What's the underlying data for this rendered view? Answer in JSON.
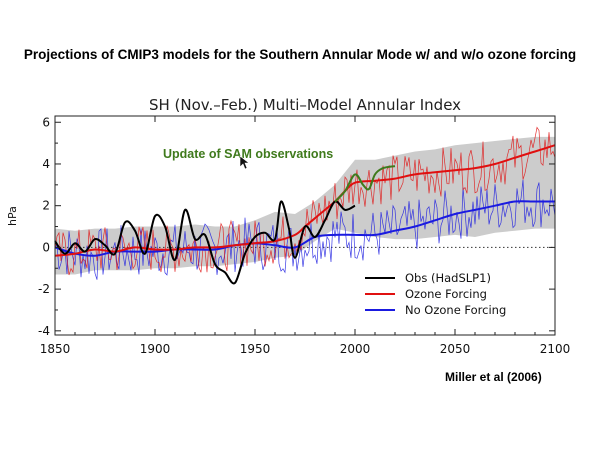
{
  "slide": {
    "title": "Projections of CMIP3 models for the Southern Annular Mode w/ and w/o ozone forcing",
    "citation": "Miller et al (2006)"
  },
  "chart_data": {
    "type": "line",
    "title": "SH (Nov.–Feb.) Multi–Model Annular Index",
    "ylabel": "hPa",
    "xlabel": "",
    "xlim": [
      1850,
      2100
    ],
    "ylim": [
      -4.2,
      6.3
    ],
    "x_ticks": [
      1850,
      1900,
      1950,
      2000,
      2050,
      2100
    ],
    "y_ticks": [
      -4,
      -2,
      0,
      2,
      4,
      6
    ],
    "zero_line": "dotted",
    "annotation": "Update of SAM observations",
    "legend_position": "bottom-right",
    "legend": [
      "Obs (HadSLP1)",
      "Ozone Forcing",
      "No Ozone Forcing"
    ],
    "colors": {
      "obs": "#000000",
      "ozone": "#e01010",
      "no_ozone": "#1a1ae0",
      "update": "#3f7a1c",
      "band": "#cccccc"
    },
    "spread_band": {
      "x": [
        1850,
        1860,
        1870,
        1880,
        1890,
        1900,
        1910,
        1920,
        1930,
        1940,
        1950,
        1960,
        1970,
        1980,
        1990,
        2000,
        2010,
        2020,
        2030,
        2040,
        2050,
        2060,
        2070,
        2080,
        2090,
        2100
      ],
      "upper": [
        0.9,
        0.8,
        0.9,
        0.9,
        1.0,
        1.0,
        1.0,
        1.1,
        1.0,
        1.0,
        1.3,
        1.7,
        1.6,
        2.2,
        3.0,
        4.2,
        4.2,
        4.4,
        4.6,
        4.7,
        4.9,
        5.0,
        5.1,
        5.2,
        5.3,
        5.3
      ],
      "lower": [
        -1.3,
        -1.3,
        -1.1,
        -1.1,
        -1.1,
        -1.0,
        -1.0,
        -0.9,
        -0.9,
        -0.8,
        -0.7,
        -0.5,
        -0.4,
        0.3,
        0.9,
        0.7,
        0.5,
        0.4,
        0.4,
        0.5,
        0.6,
        0.5,
        0.7,
        0.8,
        0.9,
        0.9
      ]
    },
    "series": [
      {
        "name": "Obs (HadSLP1)",
        "x": [
          1850,
          1855,
          1860,
          1865,
          1870,
          1875,
          1880,
          1885,
          1890,
          1895,
          1900,
          1905,
          1910,
          1915,
          1920,
          1925,
          1930,
          1935,
          1940,
          1945,
          1950,
          1955,
          1960,
          1963,
          1967,
          1970,
          1975,
          1980,
          1985,
          1990,
          1995,
          2000
        ],
        "y": [
          0.3,
          -0.3,
          0.2,
          -0.2,
          0.4,
          0.1,
          -0.3,
          1.2,
          0.8,
          -0.3,
          1.5,
          1.0,
          -0.6,
          1.8,
          0.4,
          0.6,
          -0.8,
          -1.2,
          -1.7,
          -0.3,
          0.5,
          0.7,
          0.4,
          2.2,
          0.9,
          -0.5,
          1.0,
          0.5,
          1.3,
          2.2,
          1.8,
          2.0
        ]
      },
      {
        "name": "Update of SAM observations",
        "x": [
          1990,
          1995,
          2000,
          2004,
          2007,
          2010,
          2014,
          2020
        ],
        "y": [
          2.2,
          2.7,
          3.5,
          3.0,
          2.8,
          3.5,
          3.8,
          3.9
        ]
      },
      {
        "name": "Ozone Forcing",
        "x": [
          1850,
          1860,
          1870,
          1880,
          1890,
          1900,
          1910,
          1920,
          1930,
          1940,
          1950,
          1960,
          1970,
          1975,
          1980,
          1985,
          1990,
          1995,
          2000,
          2010,
          2020,
          2030,
          2040,
          2050,
          2060,
          2070,
          2080,
          2090,
          2100
        ],
        "y": [
          -0.4,
          -0.3,
          -0.1,
          -0.2,
          0.0,
          -0.1,
          -0.1,
          0.0,
          0.0,
          0.1,
          0.2,
          0.3,
          0.6,
          1.0,
          1.4,
          1.8,
          2.2,
          2.7,
          3.1,
          3.2,
          3.3,
          3.5,
          3.6,
          3.7,
          3.8,
          4.0,
          4.3,
          4.6,
          4.9
        ]
      },
      {
        "name": "No Ozone Forcing",
        "x": [
          1850,
          1860,
          1870,
          1880,
          1890,
          1900,
          1910,
          1920,
          1930,
          1940,
          1950,
          1960,
          1970,
          1980,
          1990,
          2000,
          2010,
          2020,
          2030,
          2040,
          2050,
          2060,
          2070,
          2080,
          2090,
          2100
        ],
        "y": [
          0.0,
          -0.3,
          -0.4,
          -0.2,
          -0.2,
          -0.2,
          -0.1,
          -0.1,
          -0.1,
          0.1,
          0.2,
          0.1,
          0.0,
          0.5,
          0.6,
          0.6,
          0.6,
          0.8,
          1.0,
          1.3,
          1.6,
          1.8,
          2.0,
          2.2,
          2.2,
          2.2
        ]
      }
    ]
  }
}
